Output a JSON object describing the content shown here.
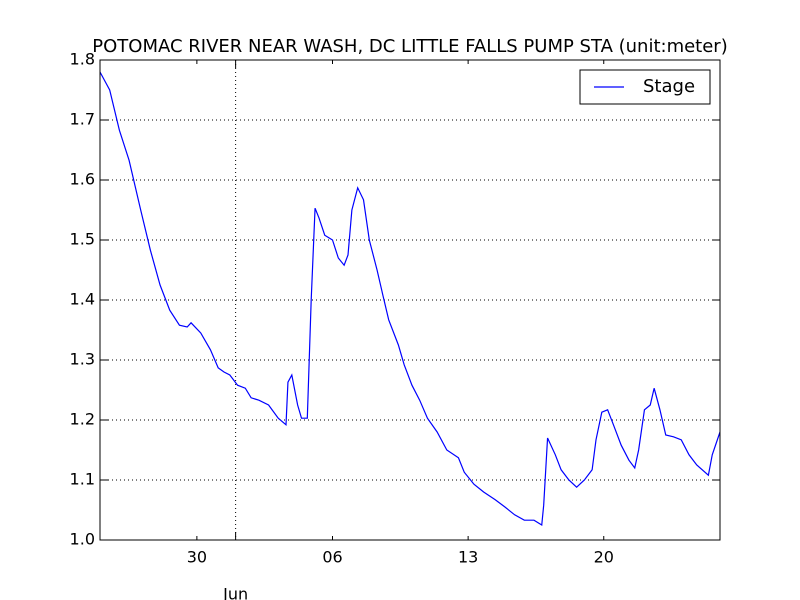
{
  "chart_data": {
    "type": "line",
    "title": "POTOMAC RIVER NEAR WASH, DC LITTLE FALLS PUMP STA (unit:meter)",
    "x": [
      0,
      0.5,
      1.0,
      1.5,
      2.1,
      2.6,
      3.1,
      3.6,
      4.1,
      4.5,
      4.7,
      5.2,
      5.7,
      6.1,
      6.4,
      6.7,
      7.1,
      7.5,
      7.8,
      8.2,
      8.7,
      9.2,
      9.6,
      9.7,
      9.9,
      10.2,
      10.4,
      10.7,
      10.9,
      11.1,
      11.3,
      11.6,
      12.0,
      12.3,
      12.6,
      12.8,
      13.0,
      13.3,
      13.6,
      13.9,
      14.3,
      14.6,
      14.9,
      15.4,
      15.7,
      16.1,
      16.5,
      16.9,
      17.4,
      17.9,
      18.5,
      18.8,
      19.3,
      19.8,
      20.4,
      20.9,
      21.4,
      21.9,
      22.4,
      22.8,
      22.9,
      23.1,
      23.5,
      23.8,
      24.2,
      24.6,
      25.0,
      25.4,
      25.6,
      25.9,
      26.2,
      26.5,
      26.9,
      27.3,
      27.6,
      27.8,
      28.1,
      28.4,
      28.6,
      28.9,
      29.2,
      29.6,
      30.0,
      30.4,
      30.8,
      31.4,
      31.6,
      32.0
    ],
    "series": [
      {
        "name": "Stage",
        "color": "#0000ff",
        "values": [
          1.78,
          1.75,
          1.683,
          1.633,
          1.55,
          1.483,
          1.425,
          1.383,
          1.358,
          1.355,
          1.362,
          1.345,
          1.317,
          1.287,
          1.28,
          1.275,
          1.258,
          1.253,
          1.237,
          1.233,
          1.225,
          1.203,
          1.192,
          1.263,
          1.275,
          1.225,
          1.203,
          1.203,
          1.4,
          1.553,
          1.537,
          1.508,
          1.5,
          1.47,
          1.458,
          1.475,
          1.55,
          1.587,
          1.567,
          1.5,
          1.45,
          1.408,
          1.367,
          1.325,
          1.292,
          1.258,
          1.233,
          1.203,
          1.18,
          1.15,
          1.137,
          1.113,
          1.093,
          1.08,
          1.067,
          1.055,
          1.042,
          1.033,
          1.033,
          1.025,
          1.058,
          1.17,
          1.142,
          1.117,
          1.1,
          1.088,
          1.1,
          1.117,
          1.167,
          1.213,
          1.217,
          1.192,
          1.158,
          1.133,
          1.12,
          1.15,
          1.217,
          1.225,
          1.253,
          1.217,
          1.175,
          1.172,
          1.167,
          1.142,
          1.125,
          1.108,
          1.142,
          1.18
        ]
      }
    ],
    "xlim": [
      0,
      32
    ],
    "xticks": [
      {
        "value": 5,
        "label": "30"
      },
      {
        "value": 12,
        "label": "06"
      },
      {
        "value": 19,
        "label": "13"
      },
      {
        "value": 26,
        "label": "20"
      }
    ],
    "x_major_ticks": [
      {
        "value": 7,
        "label": "Jun"
      }
    ],
    "ylim": [
      1.0,
      1.8
    ],
    "yticks": [
      {
        "value": 1.0,
        "label": "1.0"
      },
      {
        "value": 1.1,
        "label": "1.1"
      },
      {
        "value": 1.2,
        "label": "1.2"
      },
      {
        "value": 1.3,
        "label": "1.3"
      },
      {
        "value": 1.4,
        "label": "1.4"
      },
      {
        "value": 1.5,
        "label": "1.5"
      },
      {
        "value": 1.6,
        "label": "1.6"
      },
      {
        "value": 1.7,
        "label": "1.7"
      },
      {
        "value": 1.8,
        "label": "1.8"
      }
    ],
    "grid": true,
    "legend": "upper right"
  }
}
